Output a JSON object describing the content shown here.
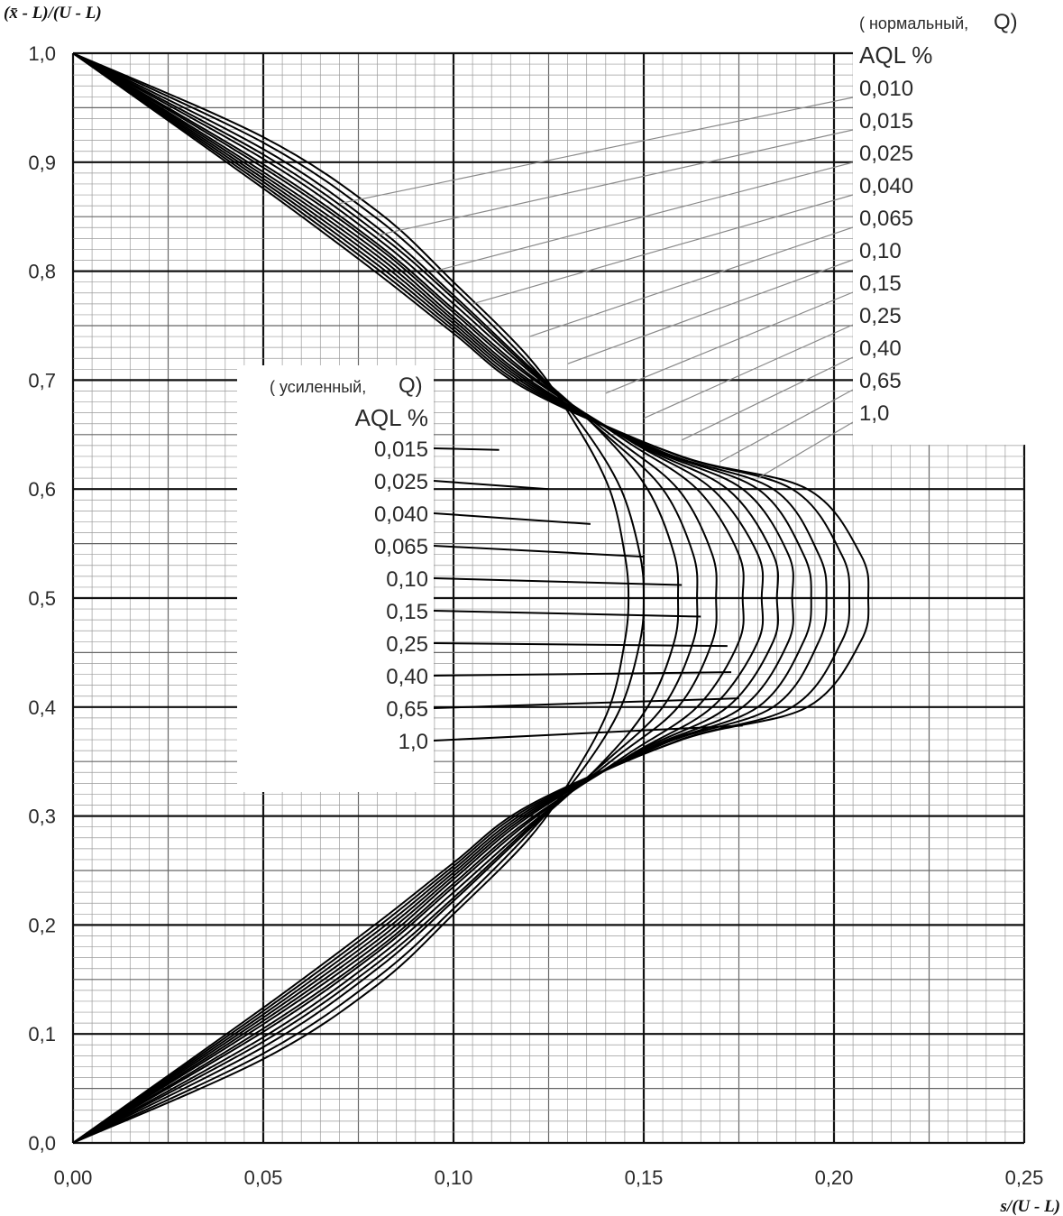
{
  "chart_data": {
    "type": "line",
    "xlabel": "s/(U - L)",
    "ylabel": "(x̄ - L)/(U - L)",
    "xlim": [
      0,
      0.25
    ],
    "ylim": [
      0,
      1.0
    ],
    "x_ticks": [
      "0,00",
      "0,05",
      "0,10",
      "0,15",
      "0,20",
      "0,25"
    ],
    "y_ticks": [
      "0,0",
      "0,1",
      "0,2",
      "0,3",
      "0,4",
      "0,5",
      "0,6",
      "0,7",
      "0,8",
      "0,9",
      "1,0"
    ],
    "grid": true,
    "normal_legend": {
      "heading_left": "( нормальный,",
      "heading_right": "Q)",
      "aql_title": "AQL %",
      "items": [
        "0,010",
        "0,015",
        "0,025",
        "0,040",
        "0,065",
        "0,10",
        "0,15",
        "0,25",
        "0,40",
        "0,65",
        "1,0"
      ]
    },
    "tightened_legend": {
      "heading_left": "( усиленный,",
      "heading_right": "Q)",
      "aql_title": "AQL %",
      "items": [
        "0,015",
        "0,025",
        "0,040",
        "0,065",
        "0,10",
        "0,15",
        "0,25",
        "0,40",
        "0,65",
        "1,0"
      ]
    },
    "series": [
      {
        "values": [
          [
            0.0,
            1.0
          ],
          [
            0.05,
            0.923
          ],
          [
            0.08,
            0.855
          ],
          [
            0.1,
            0.79
          ],
          [
            0.12,
            0.72
          ],
          [
            0.132,
            0.66
          ],
          [
            0.141,
            0.6
          ],
          [
            0.145,
            0.54
          ],
          [
            0.146,
            0.5
          ],
          [
            0.145,
            0.46
          ],
          [
            0.141,
            0.4
          ],
          [
            0.132,
            0.34
          ],
          [
            0.12,
            0.28
          ],
          [
            0.1,
            0.21
          ],
          [
            0.08,
            0.145
          ],
          [
            0.05,
            0.077
          ],
          [
            0.0,
            0.0
          ]
        ]
      },
      {
        "values": [
          [
            0.0,
            1.0
          ],
          [
            0.05,
            0.918
          ],
          [
            0.08,
            0.848
          ],
          [
            0.1,
            0.785
          ],
          [
            0.12,
            0.715
          ],
          [
            0.134,
            0.657
          ],
          [
            0.144,
            0.6
          ],
          [
            0.149,
            0.54
          ],
          [
            0.15,
            0.5
          ],
          [
            0.149,
            0.46
          ],
          [
            0.144,
            0.4
          ],
          [
            0.134,
            0.343
          ],
          [
            0.12,
            0.285
          ],
          [
            0.1,
            0.215
          ],
          [
            0.08,
            0.152
          ],
          [
            0.05,
            0.082
          ],
          [
            0.0,
            0.0
          ]
        ]
      },
      {
        "values": [
          [
            0.0,
            1.0
          ],
          [
            0.05,
            0.912
          ],
          [
            0.08,
            0.84
          ],
          [
            0.1,
            0.778
          ],
          [
            0.12,
            0.712
          ],
          [
            0.138,
            0.655
          ],
          [
            0.151,
            0.6
          ],
          [
            0.158,
            0.54
          ],
          [
            0.159,
            0.5
          ],
          [
            0.158,
            0.46
          ],
          [
            0.151,
            0.4
          ],
          [
            0.138,
            0.345
          ],
          [
            0.12,
            0.288
          ],
          [
            0.1,
            0.222
          ],
          [
            0.08,
            0.16
          ],
          [
            0.05,
            0.088
          ],
          [
            0.0,
            0.0
          ]
        ]
      },
      {
        "values": [
          [
            0.0,
            1.0
          ],
          [
            0.05,
            0.907
          ],
          [
            0.08,
            0.835
          ],
          [
            0.1,
            0.775
          ],
          [
            0.12,
            0.71
          ],
          [
            0.14,
            0.65
          ],
          [
            0.155,
            0.6
          ],
          [
            0.163,
            0.54
          ],
          [
            0.164,
            0.5
          ],
          [
            0.163,
            0.46
          ],
          [
            0.155,
            0.4
          ],
          [
            0.14,
            0.35
          ],
          [
            0.12,
            0.29
          ],
          [
            0.1,
            0.225
          ],
          [
            0.08,
            0.165
          ],
          [
            0.05,
            0.093
          ],
          [
            0.0,
            0.0
          ]
        ]
      },
      {
        "values": [
          [
            0.0,
            1.0
          ],
          [
            0.05,
            0.903
          ],
          [
            0.08,
            0.83
          ],
          [
            0.1,
            0.77
          ],
          [
            0.12,
            0.708
          ],
          [
            0.142,
            0.648
          ],
          [
            0.159,
            0.6
          ],
          [
            0.168,
            0.54
          ],
          [
            0.169,
            0.5
          ],
          [
            0.168,
            0.46
          ],
          [
            0.159,
            0.4
          ],
          [
            0.142,
            0.352
          ],
          [
            0.12,
            0.292
          ],
          [
            0.1,
            0.23
          ],
          [
            0.08,
            0.17
          ],
          [
            0.05,
            0.097
          ],
          [
            0.0,
            0.0
          ]
        ]
      },
      {
        "values": [
          [
            0.0,
            1.0
          ],
          [
            0.05,
            0.898
          ],
          [
            0.08,
            0.825
          ],
          [
            0.1,
            0.765
          ],
          [
            0.12,
            0.705
          ],
          [
            0.145,
            0.645
          ],
          [
            0.164,
            0.6
          ],
          [
            0.175,
            0.54
          ],
          [
            0.176,
            0.5
          ],
          [
            0.175,
            0.46
          ],
          [
            0.164,
            0.4
          ],
          [
            0.145,
            0.355
          ],
          [
            0.12,
            0.295
          ],
          [
            0.1,
            0.235
          ],
          [
            0.08,
            0.175
          ],
          [
            0.05,
            0.102
          ],
          [
            0.0,
            0.0
          ]
        ]
      },
      {
        "values": [
          [
            0.0,
            1.0
          ],
          [
            0.05,
            0.895
          ],
          [
            0.08,
            0.822
          ],
          [
            0.1,
            0.762
          ],
          [
            0.12,
            0.703
          ],
          [
            0.147,
            0.643
          ],
          [
            0.168,
            0.6
          ],
          [
            0.18,
            0.54
          ],
          [
            0.181,
            0.5
          ],
          [
            0.18,
            0.46
          ],
          [
            0.168,
            0.4
          ],
          [
            0.147,
            0.357
          ],
          [
            0.12,
            0.297
          ],
          [
            0.1,
            0.238
          ],
          [
            0.08,
            0.178
          ],
          [
            0.05,
            0.105
          ],
          [
            0.0,
            0.0
          ]
        ]
      },
      {
        "values": [
          [
            0.0,
            1.0
          ],
          [
            0.05,
            0.891
          ],
          [
            0.08,
            0.818
          ],
          [
            0.1,
            0.758
          ],
          [
            0.12,
            0.7
          ],
          [
            0.149,
            0.64
          ],
          [
            0.172,
            0.6
          ],
          [
            0.184,
            0.54
          ],
          [
            0.185,
            0.5
          ],
          [
            0.184,
            0.46
          ],
          [
            0.172,
            0.4
          ],
          [
            0.149,
            0.36
          ],
          [
            0.12,
            0.3
          ],
          [
            0.1,
            0.242
          ],
          [
            0.08,
            0.182
          ],
          [
            0.05,
            0.109
          ],
          [
            0.0,
            0.0
          ]
        ]
      },
      {
        "values": [
          [
            0.0,
            1.0
          ],
          [
            0.05,
            0.888
          ],
          [
            0.08,
            0.814
          ],
          [
            0.1,
            0.755
          ],
          [
            0.12,
            0.698
          ],
          [
            0.151,
            0.638
          ],
          [
            0.176,
            0.6
          ],
          [
            0.188,
            0.54
          ],
          [
            0.189,
            0.5
          ],
          [
            0.188,
            0.46
          ],
          [
            0.176,
            0.4
          ],
          [
            0.151,
            0.362
          ],
          [
            0.12,
            0.302
          ],
          [
            0.1,
            0.245
          ],
          [
            0.08,
            0.186
          ],
          [
            0.05,
            0.112
          ],
          [
            0.0,
            0.0
          ]
        ]
      },
      {
        "values": [
          [
            0.0,
            1.0
          ],
          [
            0.05,
            0.885
          ],
          [
            0.08,
            0.81
          ],
          [
            0.1,
            0.752
          ],
          [
            0.12,
            0.696
          ],
          [
            0.153,
            0.636
          ],
          [
            0.18,
            0.6
          ],
          [
            0.192,
            0.54
          ],
          [
            0.194,
            0.5
          ],
          [
            0.192,
            0.46
          ],
          [
            0.18,
            0.4
          ],
          [
            0.153,
            0.364
          ],
          [
            0.12,
            0.304
          ],
          [
            0.1,
            0.248
          ],
          [
            0.08,
            0.19
          ],
          [
            0.05,
            0.115
          ],
          [
            0.0,
            0.0
          ]
        ]
      },
      {
        "values": [
          [
            0.0,
            1.0
          ],
          [
            0.05,
            0.882
          ],
          [
            0.08,
            0.806
          ],
          [
            0.1,
            0.749
          ],
          [
            0.12,
            0.694
          ],
          [
            0.155,
            0.634
          ],
          [
            0.184,
            0.6
          ],
          [
            0.196,
            0.54
          ],
          [
            0.198,
            0.5
          ],
          [
            0.196,
            0.46
          ],
          [
            0.184,
            0.4
          ],
          [
            0.155,
            0.366
          ],
          [
            0.12,
            0.306
          ],
          [
            0.1,
            0.251
          ],
          [
            0.08,
            0.194
          ],
          [
            0.05,
            0.118
          ],
          [
            0.0,
            0.0
          ]
        ]
      },
      {
        "values": [
          [
            0.0,
            1.0
          ],
          [
            0.05,
            0.879
          ],
          [
            0.08,
            0.802
          ],
          [
            0.1,
            0.746
          ],
          [
            0.12,
            0.692
          ],
          [
            0.158,
            0.632
          ],
          [
            0.189,
            0.6
          ],
          [
            0.202,
            0.54
          ],
          [
            0.204,
            0.5
          ],
          [
            0.202,
            0.46
          ],
          [
            0.189,
            0.4
          ],
          [
            0.158,
            0.368
          ],
          [
            0.12,
            0.308
          ],
          [
            0.1,
            0.254
          ],
          [
            0.08,
            0.198
          ],
          [
            0.05,
            0.121
          ],
          [
            0.0,
            0.0
          ]
        ]
      },
      {
        "values": [
          [
            0.0,
            1.0
          ],
          [
            0.05,
            0.876
          ],
          [
            0.08,
            0.798
          ],
          [
            0.1,
            0.743
          ],
          [
            0.12,
            0.69
          ],
          [
            0.16,
            0.63
          ],
          [
            0.193,
            0.6
          ],
          [
            0.207,
            0.54
          ],
          [
            0.209,
            0.5
          ],
          [
            0.207,
            0.46
          ],
          [
            0.193,
            0.4
          ],
          [
            0.16,
            0.37
          ],
          [
            0.12,
            0.31
          ],
          [
            0.1,
            0.257
          ],
          [
            0.08,
            0.202
          ],
          [
            0.05,
            0.124
          ],
          [
            0.0,
            0.0
          ]
        ]
      }
    ]
  }
}
